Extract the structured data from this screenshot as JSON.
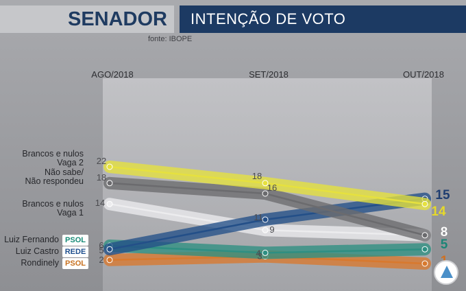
{
  "header": {
    "title": "SENADOR",
    "subtitle": "INTENÇÃO DE VOTO",
    "source": "fonte: IBOPE"
  },
  "chart_data": {
    "type": "line",
    "x": [
      "AGO/2018",
      "SET/2018",
      "OUT/2018"
    ],
    "ylim": [
      0,
      22
    ],
    "grid": false,
    "series": [
      {
        "name": "Brancos e nulos Vaga 2",
        "label_lines": [
          "Brancos e nulos",
          "Vaga 2"
        ],
        "color": "#e6e13e",
        "values": [
          22,
          18,
          14
        ]
      },
      {
        "name": "Não sabe/Não respondeu",
        "label_lines": [
          "Não sabe/",
          "Não respondeu"
        ],
        "color": "#6b6b6e",
        "values": [
          18,
          16,
          8
        ]
      },
      {
        "name": "Brancos e nulos Vaga 1",
        "label_lines": [
          "Brancos e nulos",
          "Vaga 1"
        ],
        "color": "#ececee",
        "values": [
          14,
          9,
          8
        ]
      },
      {
        "name": "Luiz Fernando",
        "label_lines": [
          "Luiz Fernando"
        ],
        "party": "PSOL",
        "party_color": "#178a76",
        "color": "#2e8f82",
        "values": [
          6,
          4,
          5
        ]
      },
      {
        "name": "Luiz Castro",
        "label_lines": [
          "Luiz Castro"
        ],
        "party": "REDE",
        "party_color": "#1f4f8e",
        "color": "#234f88",
        "values": [
          5,
          11,
          15
        ]
      },
      {
        "name": "Rondinely",
        "label_lines": [
          "Rondinely"
        ],
        "party": "PSOL",
        "party_color": "#c8701e",
        "color": "#d8792e",
        "values": [
          2,
          3,
          1
        ]
      }
    ]
  }
}
